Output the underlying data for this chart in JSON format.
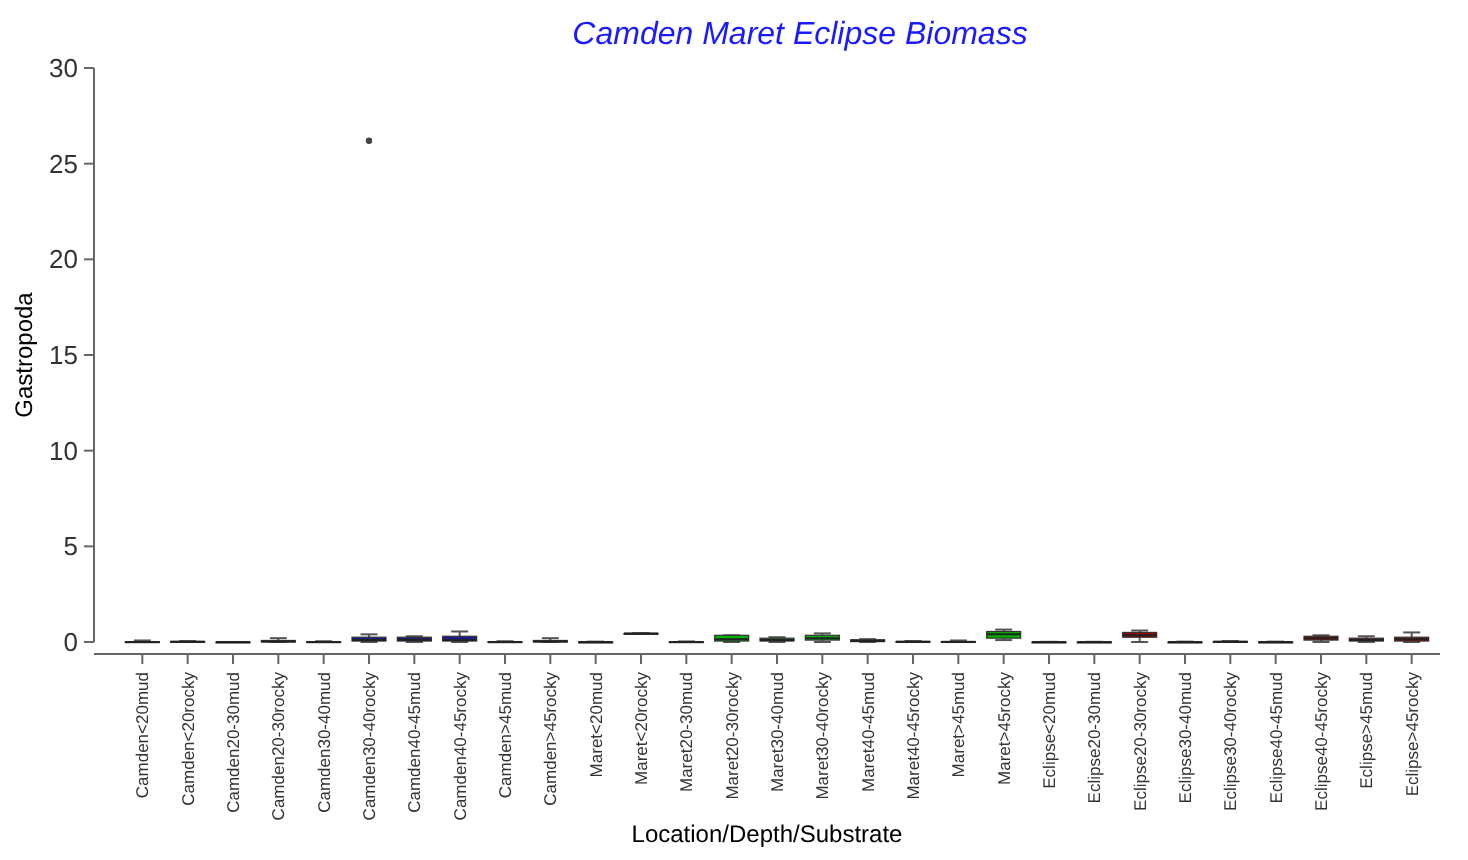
{
  "chart_data": {
    "type": "box",
    "title": "Camden Maret Eclipse Biomass",
    "xlabel": "Location/Depth/Substrate",
    "ylabel": "Gastropoda",
    "categories": [
      "Camden<20mud",
      "Camden<20rocky",
      "Camden20-30mud",
      "Camden20-30rocky",
      "Camden30-40mud",
      "Camden30-40rocky",
      "Camden40-45mud",
      "Camden40-45rocky",
      "Camden>45mud",
      "Camden>45rocky",
      "Maret<20mud",
      "Maret<20rocky",
      "Maret20-30mud",
      "Maret20-30rocky",
      "Maret30-40mud",
      "Maret30-40rocky",
      "Maret40-45mud",
      "Maret40-45rocky",
      "Maret>45mud",
      "Maret>45rocky",
      "Eclipse<20mud",
      "Eclipse20-30mud",
      "Eclipse20-30rocky",
      "Eclipse30-40mud",
      "Eclipse30-40rocky",
      "Eclipse40-45mud",
      "Eclipse40-45rocky",
      "Eclipse>45mud",
      "Eclipse>45rocky"
    ],
    "boxes": [
      {
        "low": 0,
        "q1": 0,
        "median": 0,
        "q3": 0.02,
        "high": 0.08
      },
      {
        "low": 0,
        "q1": 0,
        "median": 0.01,
        "q3": 0.03,
        "high": 0.05
      },
      {
        "low": 0,
        "q1": 0,
        "median": 0,
        "q3": 0,
        "high": 0
      },
      {
        "low": 0,
        "q1": 0,
        "median": 0.02,
        "q3": 0.08,
        "high": 0.2
      },
      {
        "low": 0,
        "q1": 0,
        "median": 0,
        "q3": 0.02,
        "high": 0.04
      },
      {
        "low": 0,
        "q1": 0.05,
        "median": 0.1,
        "q3": 0.25,
        "high": 0.4,
        "outliers": [
          26.2
        ]
      },
      {
        "low": 0,
        "q1": 0.05,
        "median": 0.12,
        "q3": 0.25,
        "high": 0.3
      },
      {
        "low": 0,
        "q1": 0.05,
        "median": 0.1,
        "q3": 0.3,
        "high": 0.55
      },
      {
        "low": 0,
        "q1": 0,
        "median": 0,
        "q3": 0.02,
        "high": 0.04
      },
      {
        "low": 0,
        "q1": 0,
        "median": 0.03,
        "q3": 0.08,
        "high": 0.2
      },
      {
        "low": 0,
        "q1": 0,
        "median": 0,
        "q3": 0,
        "high": 0.02
      },
      {
        "low": 0.45,
        "q1": 0.45,
        "median": 0.45,
        "q3": 0.45,
        "high": 0.45
      },
      {
        "low": 0,
        "q1": 0,
        "median": 0,
        "q3": 0.02,
        "high": 0.03
      },
      {
        "low": 0,
        "q1": 0.05,
        "median": 0.15,
        "q3": 0.35,
        "high": 0.35
      },
      {
        "low": 0,
        "q1": 0.05,
        "median": 0.1,
        "q3": 0.2,
        "high": 0.25
      },
      {
        "low": 0,
        "q1": 0.1,
        "median": 0.2,
        "q3": 0.35,
        "high": 0.45
      },
      {
        "low": 0,
        "q1": 0.02,
        "median": 0.05,
        "q3": 0.12,
        "high": 0.15
      },
      {
        "low": 0,
        "q1": 0,
        "median": 0.01,
        "q3": 0.03,
        "high": 0.05
      },
      {
        "low": 0,
        "q1": 0,
        "median": 0,
        "q3": 0.03,
        "high": 0.08
      },
      {
        "low": 0.1,
        "q1": 0.2,
        "median": 0.4,
        "q3": 0.55,
        "high": 0.65
      },
      {
        "low": 0,
        "q1": 0,
        "median": 0,
        "q3": 0,
        "high": 0.01
      },
      {
        "low": 0,
        "q1": 0,
        "median": 0,
        "q3": 0,
        "high": 0.01
      },
      {
        "low": 0,
        "q1": 0.25,
        "median": 0.35,
        "q3": 0.5,
        "high": 0.6
      },
      {
        "low": 0,
        "q1": 0,
        "median": 0,
        "q3": 0,
        "high": 0.02
      },
      {
        "low": 0,
        "q1": 0,
        "median": 0.01,
        "q3": 0.03,
        "high": 0.05
      },
      {
        "low": 0,
        "q1": 0,
        "median": 0,
        "q3": 0,
        "high": 0.02
      },
      {
        "low": 0,
        "q1": 0.1,
        "median": 0.2,
        "q3": 0.3,
        "high": 0.35
      },
      {
        "low": 0,
        "q1": 0.05,
        "median": 0.1,
        "q3": 0.2,
        "high": 0.3
      },
      {
        "low": 0,
        "q1": 0.05,
        "median": 0.15,
        "q3": 0.25,
        "high": 0.5
      }
    ],
    "colors": [
      "#1a1a8c",
      "#1a1a8c",
      "#1a1a8c",
      "#1a1a8c",
      "#1a1a8c",
      "#1a1a8c",
      "#1a1a8c",
      "#1a1a8c",
      "#1a1a8c",
      "#1a1a8c",
      "#00b000",
      "#999999",
      "#00b000",
      "#00b000",
      "#00b000",
      "#00b000",
      "#00b000",
      "#00b000",
      "#00b000",
      "#00b000",
      "#a00000",
      "#a00000",
      "#a00000",
      "#a00000",
      "#a00000",
      "#a00000",
      "#a00000",
      "#a00000",
      "#a00000"
    ],
    "ylim": [
      0,
      30
    ],
    "yticks": [
      0,
      5,
      10,
      15,
      20,
      25,
      30
    ],
    "grid": false
  }
}
